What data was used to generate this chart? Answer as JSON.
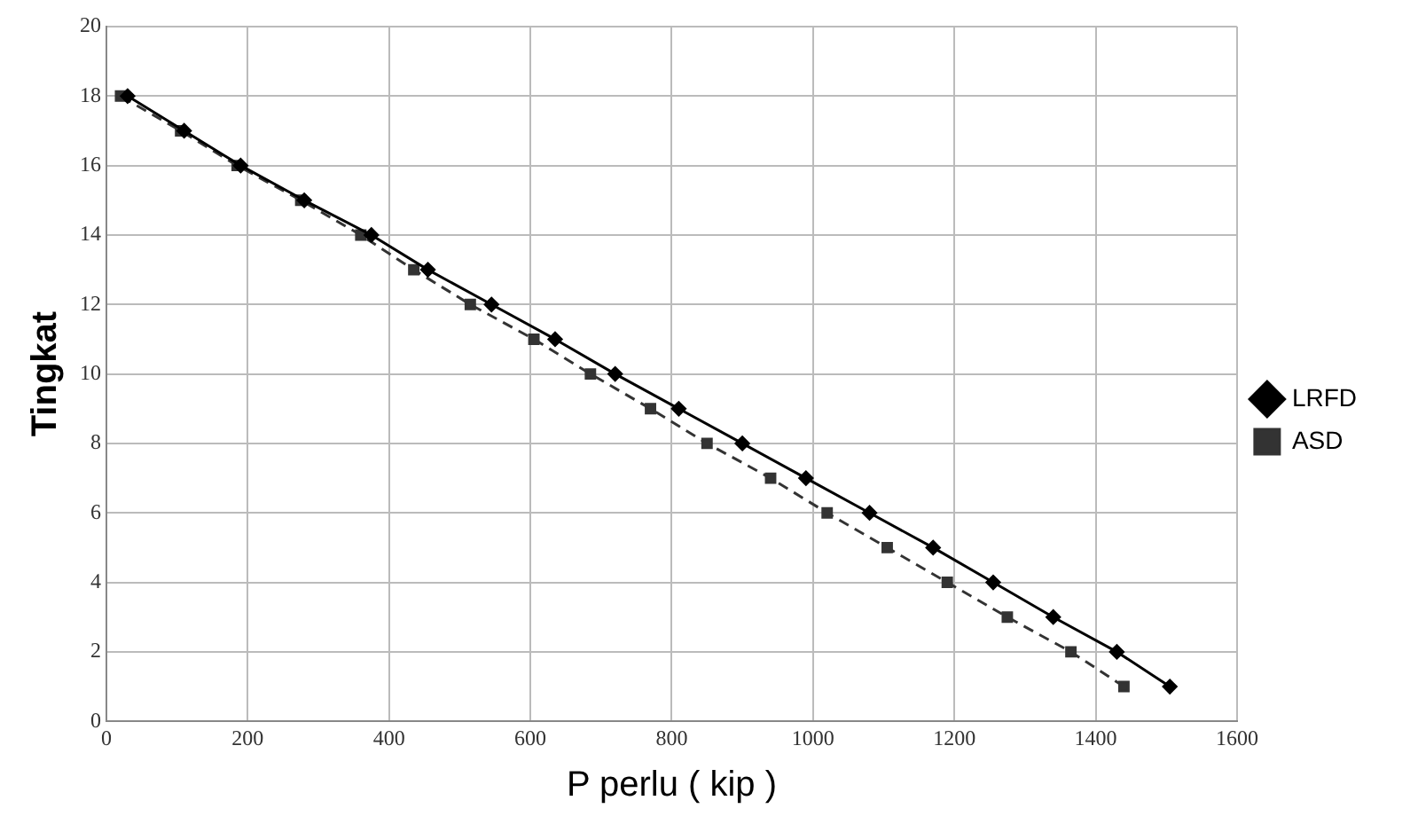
{
  "chart_data": {
    "type": "line",
    "xlabel": "P perlu ( kip )",
    "ylabel": "Tingkat",
    "xlim": [
      0,
      1600
    ],
    "xticks": [
      0,
      200,
      400,
      600,
      800,
      1000,
      1200,
      1400,
      1600
    ],
    "ylim": [
      0,
      20
    ],
    "yticks": [
      0,
      2,
      4,
      6,
      8,
      10,
      12,
      14,
      16,
      18,
      20
    ],
    "grid": true,
    "legend": "right",
    "series": [
      {
        "name": "LRFD",
        "color": "#000000",
        "marker": "diamond",
        "line_style": "solid",
        "x": [
          1505,
          1430,
          1340,
          1255,
          1170,
          1080,
          990,
          900,
          810,
          720,
          635,
          545,
          455,
          375,
          280,
          190,
          110,
          30
        ],
        "values": [
          1,
          2,
          3,
          4,
          5,
          6,
          7,
          8,
          9,
          10,
          11,
          12,
          13,
          14,
          15,
          16,
          17,
          18
        ]
      },
      {
        "name": "ASD",
        "color": "#333333",
        "marker": "square",
        "line_style": "dashed",
        "x": [
          1440,
          1365,
          1275,
          1190,
          1105,
          1020,
          940,
          850,
          770,
          685,
          605,
          515,
          435,
          360,
          275,
          185,
          105,
          20
        ],
        "values": [
          1,
          2,
          3,
          4,
          5,
          6,
          7,
          8,
          9,
          10,
          11,
          12,
          13,
          14,
          15,
          16,
          17,
          18
        ]
      }
    ]
  }
}
